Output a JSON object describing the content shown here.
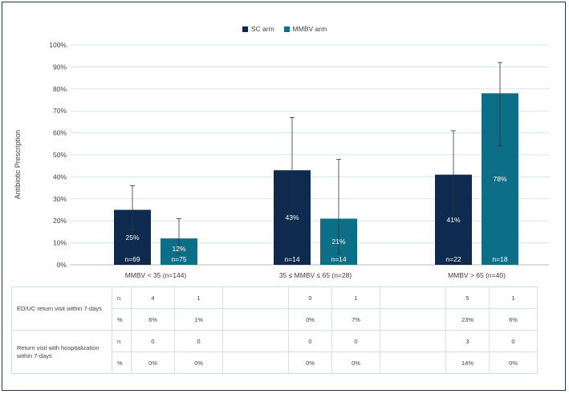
{
  "chart_data": {
    "type": "bar",
    "ylabel": "Antibiotic Prescription",
    "ylim": [
      0,
      100
    ],
    "yticks": [
      "0%",
      "10%",
      "20%",
      "30%",
      "40%",
      "50%",
      "60%",
      "70%",
      "80%",
      "90%",
      "100%"
    ],
    "grid": true,
    "legend_position": "top-center",
    "categories": [
      "MMBV < 35 (n=144)",
      "35 ≤ MMBV ≤ 65 (n=28)",
      "MMBV > 65 (n=40)"
    ],
    "series": [
      {
        "name": "SC arm",
        "color": "#0e2a4e",
        "values": [
          25,
          43,
          41
        ],
        "error_low": [
          16,
          20,
          20
        ],
        "error_high": [
          36,
          67,
          61
        ],
        "value_labels": [
          "25%",
          "43%",
          "41%"
        ],
        "n_labels": [
          "n=69",
          "n=14",
          "n=22"
        ]
      },
      {
        "name": "MMBV arm",
        "color": "#0d6e87",
        "values": [
          12,
          21,
          78
        ],
        "error_low": [
          5,
          5,
          54
        ],
        "error_high": [
          21,
          48,
          92
        ],
        "value_labels": [
          "12%",
          "21%",
          "78%"
        ],
        "n_labels": [
          "n=75",
          "n=14",
          "n=18"
        ]
      }
    ],
    "table": {
      "rows": [
        {
          "label": "ED/UC return visit within 7-days",
          "sub": "n",
          "values": [
            [
              "4",
              "1"
            ],
            [
              "0",
              "1"
            ],
            [
              "5",
              "1"
            ]
          ]
        },
        {
          "label": "",
          "sub": "%",
          "values": [
            [
              "6%",
              "1%"
            ],
            [
              "0%",
              "7%"
            ],
            [
              "23%",
              "6%"
            ]
          ]
        },
        {
          "label": "Return visit with hospitalization within 7-days",
          "sub": "n",
          "values": [
            [
              "0",
              "0"
            ],
            [
              "0",
              "0"
            ],
            [
              "3",
              "0"
            ]
          ]
        },
        {
          "label": "",
          "sub": "%",
          "values": [
            [
              "0%",
              "0%"
            ],
            [
              "0%",
              "0%"
            ],
            [
              "14%",
              "0%"
            ]
          ]
        }
      ]
    }
  }
}
